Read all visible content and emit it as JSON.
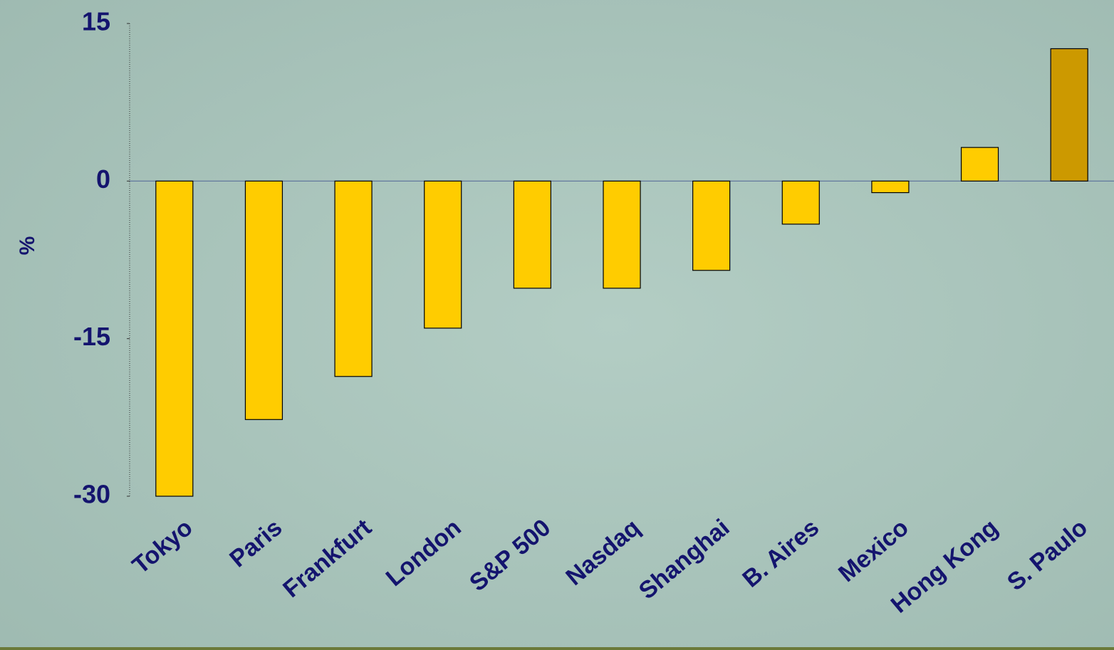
{
  "chart_data": {
    "type": "bar",
    "y_label": "%",
    "categories": [
      "Tokyo",
      "Paris",
      "Frankfurt",
      "London",
      "S&P 500",
      "Nasdaq",
      "Shanghai",
      "B. Aires",
      "Mexico",
      "Hong Kong",
      "S. Paulo"
    ],
    "values": [
      -30,
      -22.7,
      -18.6,
      -14,
      -10.2,
      -10.2,
      -8.5,
      -4.1,
      -1.1,
      3.2,
      12.6
    ],
    "colors": [
      "#ffcc00",
      "#ffcc00",
      "#ffcc00",
      "#ffcc00",
      "#ffcc00",
      "#ffcc00",
      "#ffcc00",
      "#ffcc00",
      "#ffcc00",
      "#ffcc00",
      "#cc9900"
    ],
    "ylim": [
      -30,
      15
    ],
    "yticks": [
      15,
      0,
      -15,
      -30
    ]
  }
}
